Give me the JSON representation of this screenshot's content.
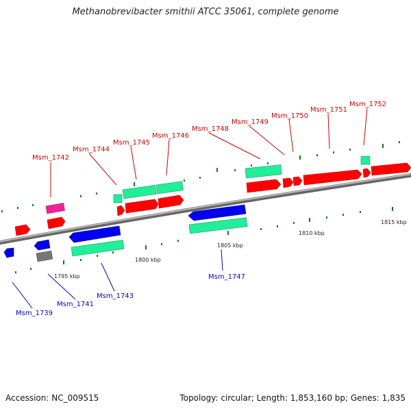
{
  "title": "Methanobrevibacter smithii ATCC 35061, complete genome",
  "footer": {
    "accession": "Accession: NC_009515",
    "summary": "Topology: circular; Length: 1,853,160 bp; Genes: 1,835"
  },
  "colors": {
    "forward_cds": "#ff0000",
    "reverse_cds": "#0000ee",
    "gene_forward": "#22ee99",
    "gene_reverse": "#22ee99",
    "rna": "#ee2299",
    "pseudo": "#777777",
    "backbone": "#888888",
    "tick": "#117711",
    "label_forward": "#cc0000",
    "label_reverse": "#0000cc"
  },
  "scale_labels": [
    "1795 kbp",
    "1800 kbp",
    "1805 kbp",
    "1810 kbp",
    "1815 kbp"
  ],
  "gene_labels": {
    "forward": [
      "Msm_1742",
      "Msm_1744",
      "Msm_1745",
      "Msm_1746",
      "Msm_1748",
      "Msm_1749",
      "Msm_1750",
      "Msm_1751",
      "Msm_1752"
    ],
    "reverse": [
      "Msm_1739",
      "Msm_1741",
      "Msm_1743",
      "Msm_1747"
    ]
  }
}
